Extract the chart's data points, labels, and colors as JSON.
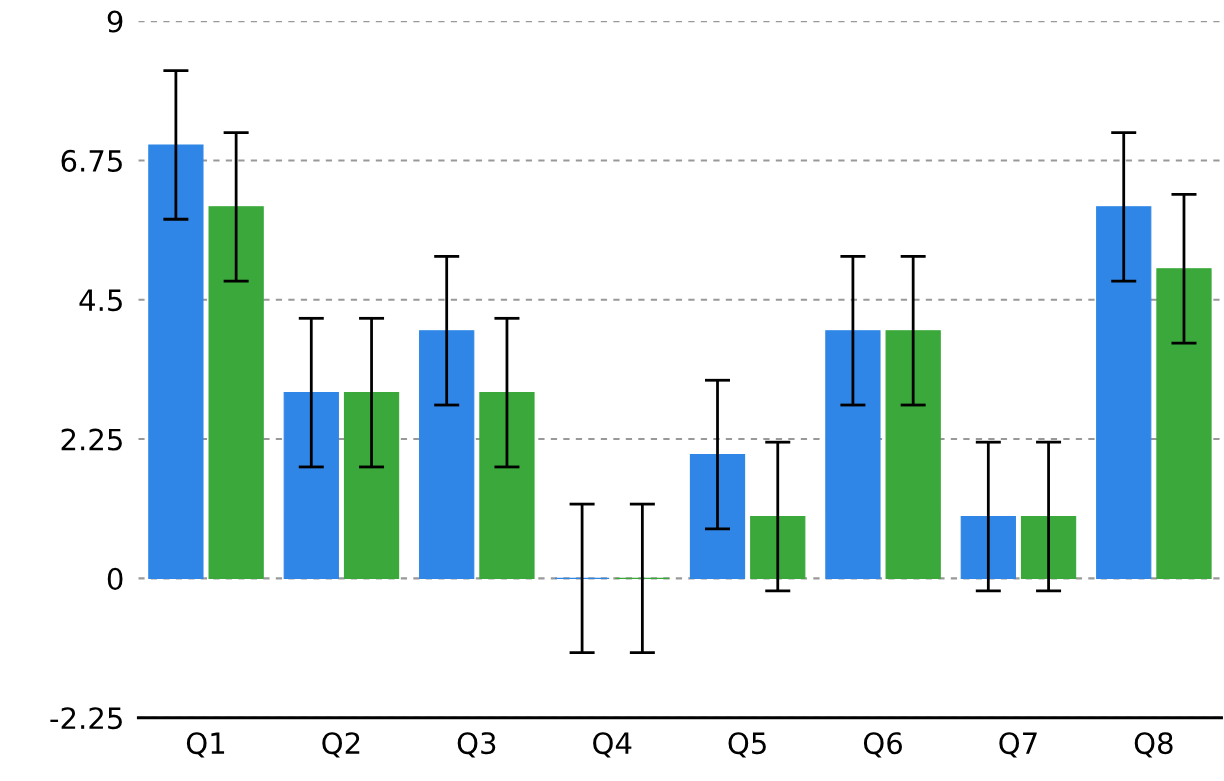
{
  "chart_data": {
    "type": "bar",
    "categories": [
      "Q1",
      "Q2",
      "Q3",
      "Q4",
      "Q5",
      "Q6",
      "Q7",
      "Q8"
    ],
    "series": [
      {
        "color": "#2f86e6",
        "values": [
          7,
          3,
          4,
          0,
          2,
          4,
          1,
          6
        ],
        "errors": [
          1.2,
          1.2,
          1.2,
          1.2,
          1.2,
          1.2,
          1.2,
          1.2
        ]
      },
      {
        "color": "#3aa83a",
        "values": [
          6,
          3,
          3,
          0,
          1,
          4,
          1,
          5
        ],
        "errors": [
          1.2,
          1.2,
          1.2,
          1.2,
          1.2,
          1.2,
          1.2,
          1.2
        ]
      }
    ],
    "ylim": [
      -2.25,
      9
    ],
    "yticks": [
      -2.25,
      0,
      2.25,
      4.5,
      6.75,
      9
    ],
    "grid": "y",
    "legend": false
  }
}
